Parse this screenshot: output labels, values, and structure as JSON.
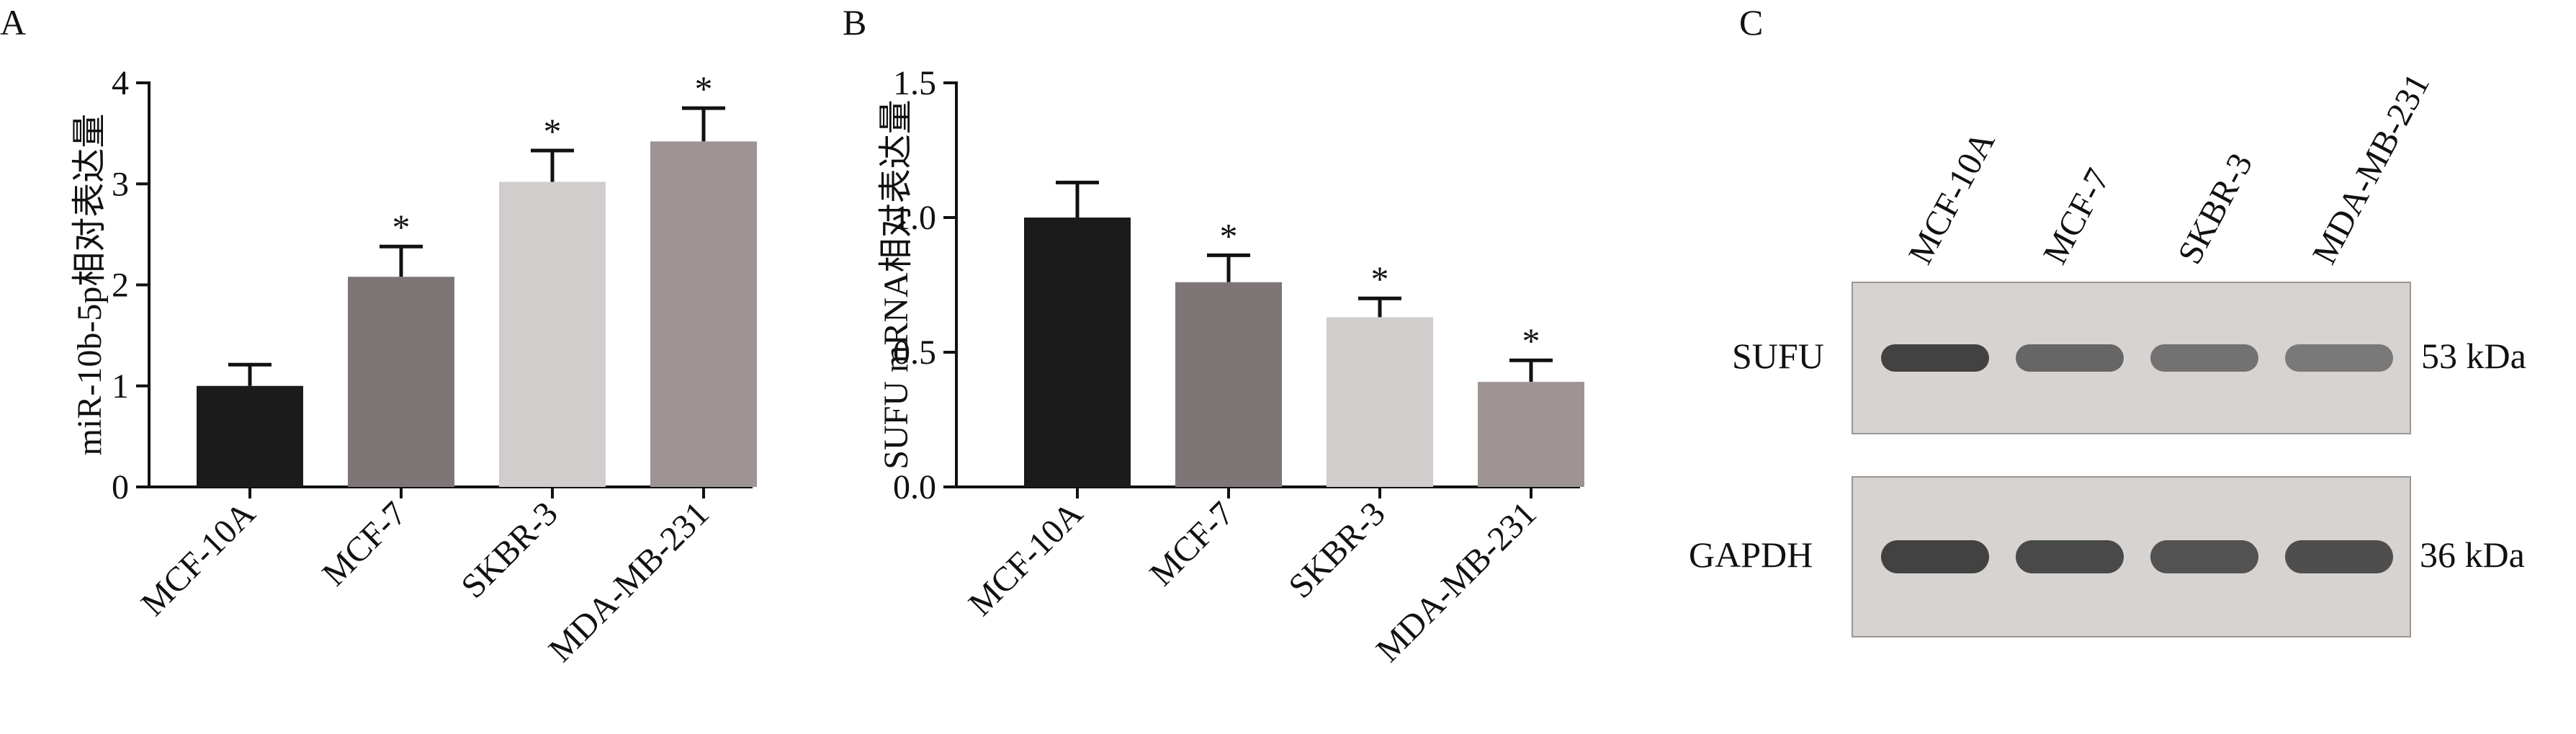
{
  "panels": {
    "a": "A",
    "b": "B",
    "c": "C"
  },
  "chart_data": [
    {
      "type": "bar",
      "panel": "A",
      "ylabel": "miR-10b-5p相对表达量",
      "xlabel": "",
      "ylim": [
        0,
        4
      ],
      "yticks": [
        0,
        1,
        2,
        3,
        4
      ],
      "categories": [
        "MCF-10A",
        "MCF-7",
        "SKBR-3",
        "MDA-MB-231"
      ],
      "values": [
        1.0,
        2.08,
        3.02,
        3.42
      ],
      "errors": [
        0.21,
        0.3,
        0.31,
        0.33
      ],
      "significance": [
        "",
        "*",
        "*",
        "*"
      ],
      "colors": [
        "#1b1b1b",
        "#7e7676",
        "#d1cdcc",
        "#9e9494"
      ]
    },
    {
      "type": "bar",
      "panel": "B",
      "ylabel": "SUFU mRNA相对表达量",
      "xlabel": "",
      "ylim": [
        0,
        1.5
      ],
      "yticks": [
        "0.0",
        "0.5",
        "1.0",
        "1.5"
      ],
      "categories": [
        "MCF-10A",
        "MCF-7",
        "SKBR-3",
        "MDA-MB-231"
      ],
      "values": [
        1.0,
        0.76,
        0.63,
        0.39
      ],
      "errors": [
        0.13,
        0.1,
        0.07,
        0.08
      ],
      "significance": [
        "",
        "*",
        "*",
        "*"
      ],
      "colors": [
        "#1b1b1b",
        "#7e7676",
        "#d1cdcc",
        "#9e9494"
      ]
    }
  ],
  "blot": {
    "lanes": [
      "MCF-10A",
      "MCF-7",
      "SKBR-3",
      "MDA-MB-231"
    ],
    "rows": [
      {
        "protein": "SUFU",
        "size": "53 kDa",
        "intensity": [
          0.95,
          0.8,
          0.75,
          0.72
        ]
      },
      {
        "protein": "GAPDH",
        "size": "36 kDa",
        "intensity": [
          0.95,
          0.92,
          0.88,
          0.9
        ]
      }
    ],
    "background": "#d7d3d0"
  }
}
